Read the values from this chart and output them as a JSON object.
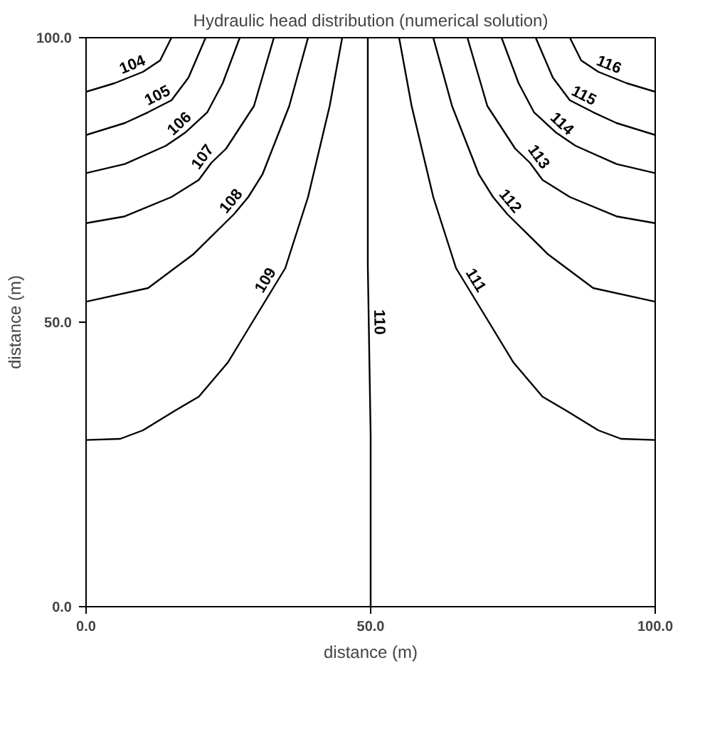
{
  "chart_data": {
    "type": "line",
    "title": "Hydraulic head distribution (numerical solution)",
    "xlabel": "distance (m)",
    "ylabel": "distance (m)",
    "xlim": [
      0,
      100
    ],
    "ylim": [
      0,
      100
    ],
    "xticks": [
      {
        "value": 0,
        "label": "0.0"
      },
      {
        "value": 50,
        "label": "50.0"
      },
      {
        "value": 100,
        "label": "100.0"
      }
    ],
    "yticks": [
      {
        "value": 0,
        "label": "0.0"
      },
      {
        "value": 50,
        "label": "50.0"
      },
      {
        "value": 100,
        "label": "100.0"
      }
    ],
    "grid": false,
    "marker": "none",
    "line_style": "solid",
    "series": [
      {
        "name": "104",
        "color": "#000000",
        "x": [
          0,
          5,
          10,
          13,
          15
        ],
        "values": [
          90.5,
          92,
          94,
          96,
          100
        ]
      },
      {
        "name": "105",
        "color": "#000000",
        "x": [
          0,
          6.8,
          10.9,
          15,
          18,
          21
        ],
        "values": [
          82.9,
          85,
          86.9,
          89,
          93,
          100
        ]
      },
      {
        "name": "106",
        "color": "#000000",
        "x": [
          0,
          6.8,
          14,
          17.4,
          21.3,
          24,
          27
        ],
        "values": [
          76.2,
          77.8,
          81,
          83.3,
          86.9,
          92,
          100
        ]
      },
      {
        "name": "107",
        "color": "#000000",
        "x": [
          0,
          6.8,
          15,
          19.8,
          22,
          24.6,
          29.5,
          33
        ],
        "values": [
          67.4,
          68.6,
          72,
          75,
          78,
          80.5,
          88,
          100
        ]
      },
      {
        "name": "108",
        "color": "#000000",
        "x": [
          0,
          10.9,
          18.8,
          26,
          28.5,
          31,
          35.7,
          39
        ],
        "values": [
          53.6,
          56,
          61.9,
          69,
          72,
          76,
          88,
          100
        ]
      },
      {
        "name": "109",
        "color": "#000000",
        "x": [
          0,
          6,
          10,
          15.7,
          19.8,
          24.9,
          28,
          35,
          39,
          42.8,
          45
        ],
        "values": [
          29.3,
          29.5,
          31,
          34.5,
          36.9,
          42.9,
          48,
          59.5,
          72,
          88,
          100
        ]
      },
      {
        "name": "110",
        "color": "#000000",
        "x": [
          50,
          50,
          49.5,
          49.5
        ],
        "values": [
          0,
          30,
          60,
          100
        ]
      },
      {
        "name": "111",
        "color": "#000000",
        "x": [
          100,
          94,
          90,
          84.3,
          80.2,
          75.1,
          72,
          65,
          61,
          57.2,
          55
        ],
        "values": [
          29.3,
          29.5,
          31,
          34.5,
          36.9,
          42.9,
          48,
          59.5,
          72,
          88,
          100
        ]
      },
      {
        "name": "112",
        "color": "#000000",
        "x": [
          100,
          89.1,
          81.2,
          74,
          71.5,
          69,
          64.3,
          61
        ],
        "values": [
          53.6,
          56,
          61.9,
          69,
          72,
          76,
          88,
          100
        ]
      },
      {
        "name": "113",
        "color": "#000000",
        "x": [
          100,
          93.2,
          85,
          80.2,
          78,
          75.4,
          70.5,
          67
        ],
        "values": [
          67.4,
          68.6,
          72,
          75,
          78,
          80.5,
          88,
          100
        ]
      },
      {
        "name": "114",
        "color": "#000000",
        "x": [
          100,
          93.2,
          86,
          82.6,
          78.7,
          76,
          73
        ],
        "values": [
          76.2,
          77.8,
          81,
          83.3,
          86.9,
          92,
          100
        ]
      },
      {
        "name": "115",
        "color": "#000000",
        "x": [
          100,
          93.2,
          89.1,
          85,
          82,
          79
        ],
        "values": [
          82.9,
          85,
          86.9,
          89,
          93,
          100
        ]
      },
      {
        "name": "116",
        "color": "#000000",
        "x": [
          100,
          95,
          90,
          87,
          85
        ],
        "values": [
          90.5,
          92,
          94,
          96,
          100
        ]
      }
    ]
  }
}
